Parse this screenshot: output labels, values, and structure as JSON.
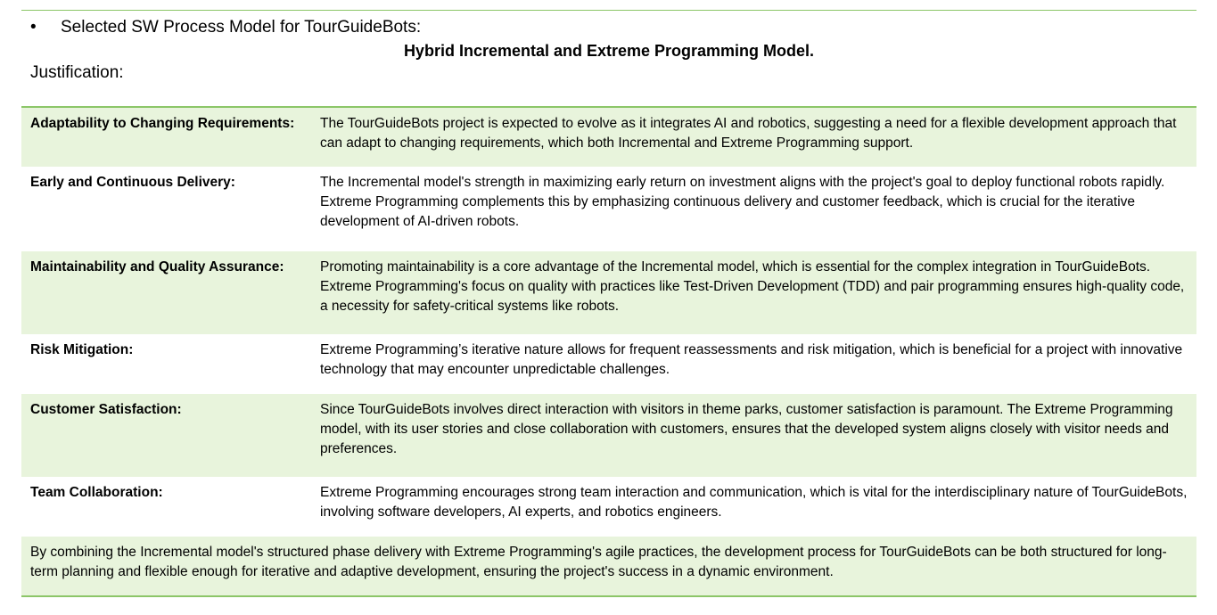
{
  "header": {
    "bullet": "•",
    "selected_text": "Selected SW Process Model for TourGuideBots:",
    "model_title": "Hybrid Incremental and Extreme Programming Model.",
    "justification_label": "Justification:"
  },
  "rows": [
    {
      "label": "Adaptability to Changing Requirements:",
      "text": "The TourGuideBots project is expected to evolve as it integrates AI and robotics, suggesting a need for a flexible development approach that can adapt to changing requirements, which both Incremental and Extreme Programming support."
    },
    {
      "label": "Early and Continuous Delivery:",
      "text": "The Incremental model's strength in maximizing early return on investment aligns with the project's goal to deploy functional robots rapidly. Extreme Programming complements this by emphasizing continuous delivery and customer feedback, which is crucial for the iterative development of AI-driven robots."
    },
    {
      "label": "Maintainability and Quality Assurance:",
      "text": "Promoting maintainability is a core advantage of the Incremental model, which is essential for the complex integration in TourGuideBots. Extreme Programming's focus on quality with practices like Test-Driven Development (TDD) and pair programming ensures high-quality code, a necessity for safety-critical systems like robots."
    },
    {
      "label": "Risk Mitigation:",
      "text": "Extreme Programming’s iterative nature allows for frequent reassessments and risk mitigation, which is beneficial for a project with innovative technology that may encounter unpredictable challenges."
    },
    {
      "label": "Customer Satisfaction:",
      "text": "Since TourGuideBots involves direct interaction with visitors in theme parks, customer satisfaction is paramount. The Extreme Programming model, with its user stories and close collaboration with customers, ensures that the developed system aligns closely with visitor needs and preferences."
    },
    {
      "label": "Team Collaboration:",
      "text": "Extreme Programming encourages strong team interaction and communication, which is vital for the interdisciplinary nature of TourGuideBots, involving software developers, AI experts, and robotics engineers."
    }
  ],
  "summary": "By combining the Incremental model's structured phase delivery with Extreme Programming's agile practices, the development process for TourGuideBots can be both structured for long-term planning and flexible enough for iterative and adaptive development, ensuring the project's success in a dynamic environment.",
  "colors": {
    "accent_rule": "#8cc668",
    "row_shade": "#e8f4dc"
  }
}
